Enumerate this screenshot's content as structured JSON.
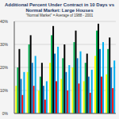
{
  "chart_data": {
    "type": "bar",
    "title": "Additional Percent Under Contract in 10 Days vs Normal Market:  Large Houses",
    "subtitle": "\"Normal Market\" = Average of 1988 - 2001",
    "categories": [
      null,
      null,
      null,
      null,
      null,
      null,
      null,
      null,
      null
    ],
    "series": [
      {
        "color": "#ffff00",
        "values": [
          12,
          18,
          10,
          22,
          15,
          20,
          14,
          25,
          17
        ]
      },
      {
        "color": "#00b050",
        "values": [
          20,
          30,
          16,
          34,
          24,
          31,
          22,
          36,
          28
        ]
      },
      {
        "color": "#000000",
        "values": [
          28,
          34,
          22,
          38,
          30,
          36,
          26,
          39,
          33
        ]
      },
      {
        "color": "#0070c0",
        "values": [
          15,
          22,
          12,
          26,
          18,
          24,
          16,
          28,
          20
        ]
      },
      {
        "color": "#ff0000",
        "values": [
          8,
          12,
          6,
          14,
          10,
          13,
          9,
          16,
          11
        ]
      },
      {
        "color": "#00b0f0",
        "values": [
          18,
          25,
          14,
          29,
          21,
          27,
          19,
          31,
          23
        ]
      }
    ],
    "ylim": [
      0,
      40
    ],
    "yticks": [
      {
        "value": 0,
        "label": "0%"
      },
      {
        "value": 10,
        "label": "10%"
      },
      {
        "value": 20,
        "label": "20%"
      },
      {
        "value": 30,
        "label": "30%"
      },
      {
        "value": 40,
        "label": "40%"
      }
    ],
    "grid": true,
    "tick_labels": "y"
  }
}
